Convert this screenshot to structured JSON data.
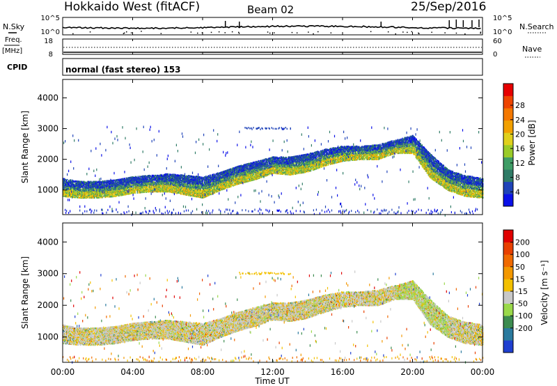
{
  "header": {
    "station": "Hokkaido West (fitACF)",
    "beam": "Beam 02",
    "date": "25/Sep/2016"
  },
  "status_panels": {
    "nsky_label": "N.Sky",
    "nsky_ticks": [
      "10^5",
      "10^0"
    ],
    "nsearch_label": "N.Search",
    "nsearch_ticks": [
      "10^5",
      "10^0"
    ],
    "freq_label_top": "Freq.",
    "freq_label_bottom": "[MHz]",
    "freq_ticks": [
      "18",
      "8"
    ],
    "nave_label": "Nave",
    "nave_ticks": [
      "60",
      "0"
    ],
    "cpid_label": "CPID",
    "cpid_text": "normal (fast stereo) 153"
  },
  "chart_data": [
    {
      "type": "heatmap",
      "panel": "power",
      "ylabel": "Slant Range [km]",
      "xlabel": "",
      "x_ticks": [
        "00:00",
        "04:00",
        "08:00",
        "12:00",
        "16:00",
        "20:00",
        "00:00"
      ],
      "xlim_hours": [
        0,
        24
      ],
      "ylim": [
        200,
        4600
      ],
      "y_ticks": [
        1000,
        2000,
        3000,
        4000
      ],
      "colorbar": {
        "label": "Power [dB]",
        "ticks": [
          "4",
          "8",
          "12",
          "16",
          "20",
          "24",
          "28"
        ],
        "colors": [
          "#0a10e8",
          "#1f43b8",
          "#2f7b66",
          "#3f9d66",
          "#9acb28",
          "#e0d01c",
          "#f2a000",
          "#f47800",
          "#ee4400",
          "#e60000"
        ]
      },
      "scatter_band_km": {
        "hours": [
          0,
          1,
          2,
          3,
          4,
          5,
          6,
          7,
          8,
          9,
          10,
          11,
          12,
          13,
          14,
          15,
          16,
          17,
          18,
          19,
          20,
          21,
          22,
          23,
          24
        ],
        "lower": [
          900,
          850,
          850,
          900,
          1000,
          1050,
          1050,
          950,
          850,
          1100,
          1300,
          1450,
          1650,
          1600,
          1700,
          1900,
          2050,
          2100,
          2100,
          2300,
          2300,
          1500,
          1100,
          900,
          850
        ],
        "upper": [
          1400,
          1300,
          1300,
          1350,
          1450,
          1500,
          1550,
          1500,
          1450,
          1600,
          1800,
          1950,
          2100,
          2100,
          2200,
          2350,
          2450,
          2450,
          2500,
          2650,
          2800,
          2200,
          1700,
          1500,
          1400
        ]
      }
    },
    {
      "type": "heatmap",
      "panel": "velocity",
      "ylabel": "Slant Range [km]",
      "xlabel": "Time UT",
      "x_ticks": [
        "00:00",
        "04:00",
        "08:00",
        "12:00",
        "16:00",
        "20:00",
        "00:00"
      ],
      "xlim_hours": [
        0,
        24
      ],
      "ylim": [
        200,
        4600
      ],
      "y_ticks": [
        1000,
        2000,
        3000,
        4000
      ],
      "colorbar": {
        "label": "Velocity [m s⁻¹]",
        "ticks": [
          "200",
          "100",
          "50",
          "15",
          "-15",
          "-50",
          "-100",
          "-200"
        ],
        "colors": [
          "#1f3fd0",
          "#2a7a9e",
          "#3c8c50",
          "#9ad94a",
          "#c8c8c8",
          "#f3c000",
          "#f39800",
          "#f06a00",
          "#e84000",
          "#e00000"
        ]
      }
    }
  ]
}
